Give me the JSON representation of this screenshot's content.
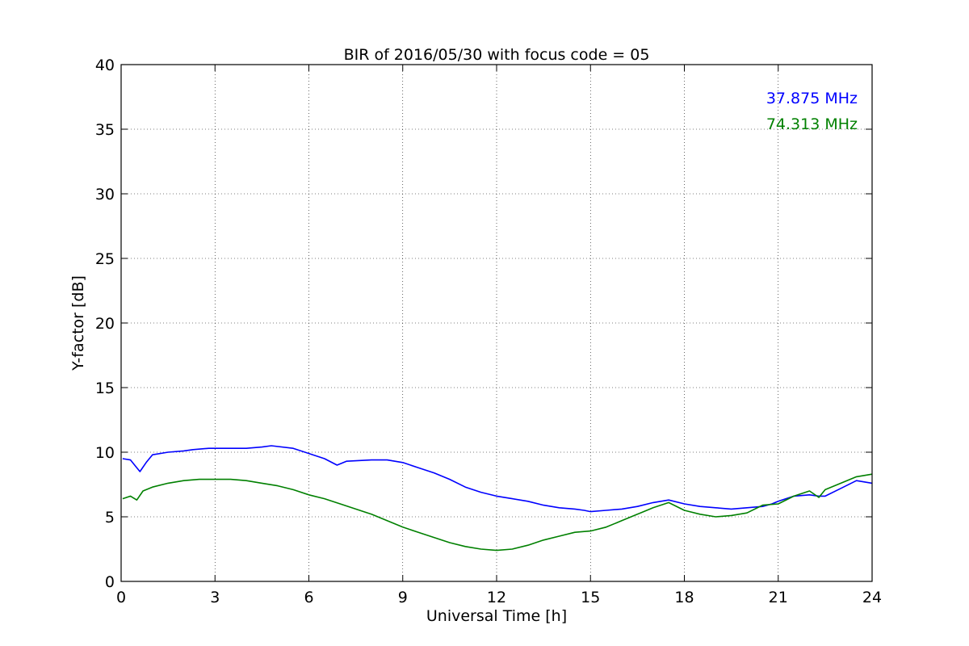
{
  "chart_data": {
    "type": "line",
    "title": "BIR of 2016/05/30 with focus code = 05",
    "xlabel": "Universal Time [h]",
    "ylabel": "Y-factor [dB]",
    "xlim": [
      0,
      24
    ],
    "ylim": [
      0,
      40
    ],
    "xticks": [
      0,
      3,
      6,
      9,
      12,
      15,
      18,
      21,
      24
    ],
    "yticks": [
      0,
      5,
      10,
      15,
      20,
      25,
      30,
      35,
      40
    ],
    "grid": true,
    "legend_position": "top-right",
    "series": [
      {
        "name": "37.875 MHz",
        "color": "#0000ff",
        "x": [
          0.05,
          0.3,
          0.5,
          0.6,
          0.8,
          1.0,
          1.5,
          2.0,
          2.3,
          2.8,
          3.0,
          3.5,
          4.0,
          4.5,
          4.8,
          5.5,
          6.0,
          6.5,
          6.9,
          7.2,
          8.0,
          8.5,
          9.0,
          9.5,
          10.0,
          10.5,
          11.0,
          11.5,
          12.0,
          12.5,
          13.0,
          13.5,
          14.0,
          14.5,
          14.8,
          15.0,
          15.5,
          16.0,
          16.5,
          17.0,
          17.5,
          18.0,
          18.5,
          19.0,
          19.5,
          20.0,
          20.5,
          20.8,
          21.0,
          21.5,
          22.0,
          22.3,
          22.5,
          23.0,
          23.5,
          24.0
        ],
        "y": [
          9.5,
          9.4,
          8.8,
          8.5,
          9.2,
          9.8,
          10.0,
          10.1,
          10.2,
          10.3,
          10.3,
          10.3,
          10.3,
          10.4,
          10.5,
          10.3,
          9.9,
          9.5,
          9.0,
          9.3,
          9.4,
          9.4,
          9.2,
          8.8,
          8.4,
          7.9,
          7.3,
          6.9,
          6.6,
          6.4,
          6.2,
          5.9,
          5.7,
          5.6,
          5.5,
          5.4,
          5.5,
          5.6,
          5.8,
          6.1,
          6.3,
          6.0,
          5.8,
          5.7,
          5.6,
          5.7,
          5.8,
          6.0,
          6.2,
          6.6,
          6.7,
          6.6,
          6.6,
          7.2,
          7.8,
          7.6
        ]
      },
      {
        "name": "74.313 MHz",
        "color": "#008000",
        "x": [
          0.05,
          0.3,
          0.5,
          0.7,
          1.0,
          1.5,
          2.0,
          2.5,
          3.0,
          3.5,
          4.0,
          4.5,
          5.0,
          5.5,
          6.0,
          6.5,
          7.0,
          7.5,
          8.0,
          8.5,
          9.0,
          9.5,
          10.0,
          10.5,
          11.0,
          11.5,
          12.0,
          12.5,
          13.0,
          13.5,
          14.0,
          14.5,
          15.0,
          15.5,
          16.0,
          16.5,
          17.0,
          17.5,
          18.0,
          18.5,
          19.0,
          19.5,
          20.0,
          20.5,
          21.0,
          21.5,
          22.0,
          22.3,
          22.5,
          23.0,
          23.5,
          24.0
        ],
        "y": [
          6.4,
          6.6,
          6.3,
          7.0,
          7.3,
          7.6,
          7.8,
          7.9,
          7.9,
          7.9,
          7.8,
          7.6,
          7.4,
          7.1,
          6.7,
          6.4,
          6.0,
          5.6,
          5.2,
          4.7,
          4.2,
          3.8,
          3.4,
          3.0,
          2.7,
          2.5,
          2.4,
          2.5,
          2.8,
          3.2,
          3.5,
          3.8,
          3.9,
          4.2,
          4.7,
          5.2,
          5.7,
          6.1,
          5.5,
          5.2,
          5.0,
          5.1,
          5.3,
          5.9,
          6.0,
          6.6,
          7.0,
          6.5,
          7.1,
          7.6,
          8.1,
          8.3
        ]
      }
    ]
  }
}
